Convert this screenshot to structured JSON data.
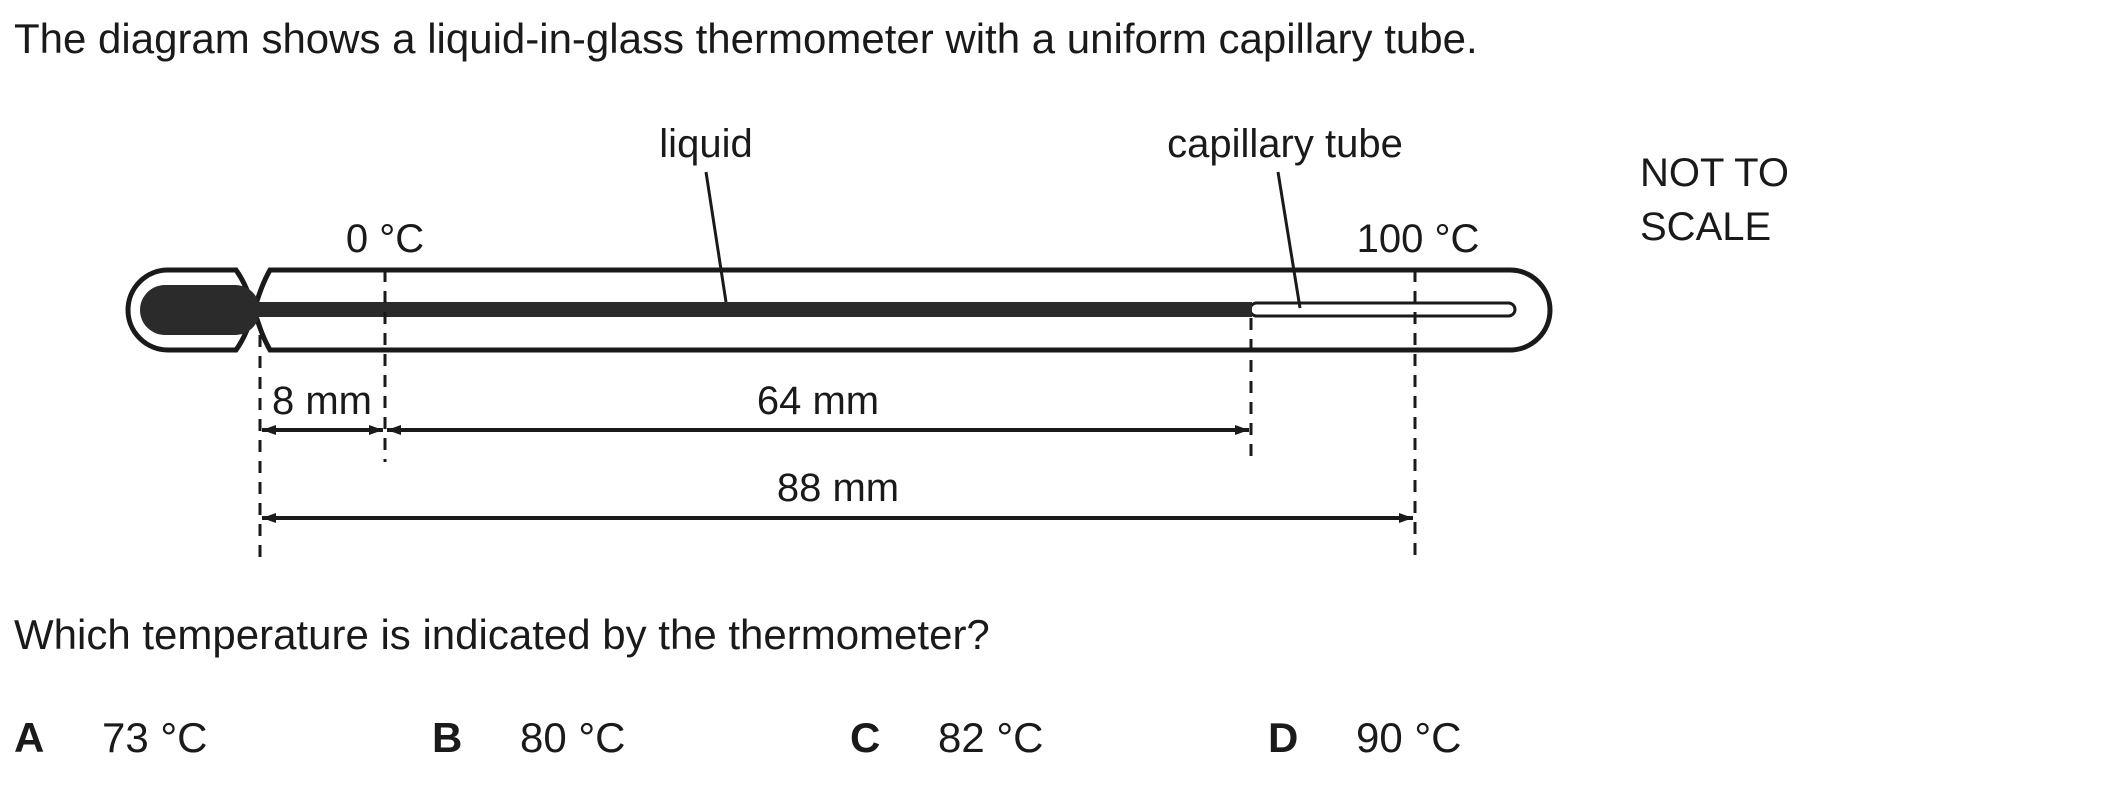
{
  "question": {
    "stem": "The diagram shows a liquid-in-glass thermometer with a uniform capillary tube.",
    "prompt": "Which temperature is indicated by the thermometer?"
  },
  "diagram": {
    "label_liquid": "liquid",
    "label_capillary": "capillary tube",
    "label_zero": "0 °C",
    "label_hundred": "100 °C",
    "not_to_scale_line1": "NOT TO",
    "not_to_scale_line2": "SCALE",
    "dim_8": "8 mm",
    "dim_64": "64 mm",
    "dim_88": "88 mm"
  },
  "options": [
    {
      "letter": "A",
      "value": "73 °C"
    },
    {
      "letter": "B",
      "value": "80 °C"
    },
    {
      "letter": "C",
      "value": "82 °C"
    },
    {
      "letter": "D",
      "value": "90 °C"
    }
  ]
}
